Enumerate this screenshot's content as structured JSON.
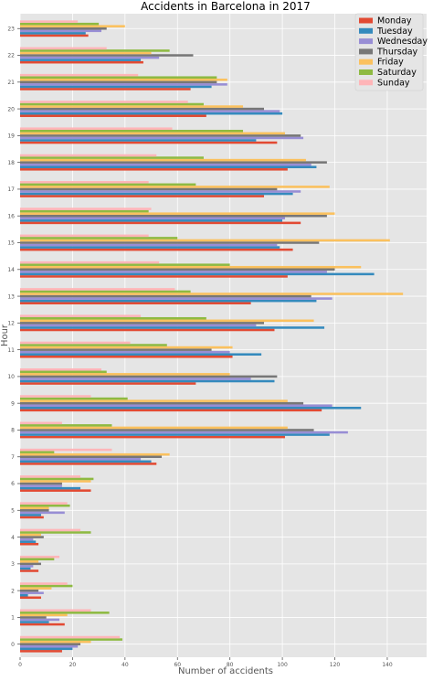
{
  "chart_data": {
    "type": "bar",
    "orientation": "horizontal",
    "title": "Accidents in Barcelona in 2017",
    "xlabel": "Number of accidents",
    "ylabel": "Hour",
    "xlim": [
      0,
      155
    ],
    "xticks": [
      0,
      20,
      40,
      60,
      80,
      100,
      120,
      140
    ],
    "grid": true,
    "legend_position": "top-right",
    "categories": [
      "0",
      "1",
      "2",
      "3",
      "4",
      "5",
      "6",
      "7",
      "8",
      "9",
      "10",
      "11",
      "12",
      "13",
      "14",
      "15",
      "16",
      "17",
      "18",
      "19",
      "20",
      "21",
      "22",
      "23"
    ],
    "series": [
      {
        "name": "Monday",
        "color": "#E24A33",
        "values": [
          16,
          17,
          8,
          7,
          7,
          9,
          27,
          52,
          101,
          115,
          67,
          81,
          97,
          88,
          102,
          104,
          107,
          93,
          102,
          98,
          71,
          65,
          47,
          26
        ]
      },
      {
        "name": "Tuesday",
        "color": "#348ABD",
        "values": [
          20,
          11,
          3,
          4,
          6,
          8,
          23,
          50,
          118,
          130,
          97,
          92,
          116,
          113,
          135,
          99,
          100,
          104,
          113,
          90,
          100,
          73,
          46,
          25
        ]
      },
      {
        "name": "Wednesday",
        "color": "#988ED5",
        "values": [
          22,
          15,
          9,
          5,
          5,
          17,
          16,
          46,
          125,
          119,
          88,
          80,
          90,
          119,
          117,
          98,
          101,
          107,
          111,
          108,
          99,
          79,
          53,
          31
        ]
      },
      {
        "name": "Thursday",
        "color": "#777777",
        "values": [
          23,
          10,
          7,
          8,
          9,
          11,
          16,
          54,
          112,
          108,
          98,
          73,
          93,
          111,
          120,
          114,
          117,
          98,
          117,
          107,
          93,
          75,
          66,
          33
        ]
      },
      {
        "name": "Friday",
        "color": "#FBC15E",
        "values": [
          27,
          18,
          12,
          7,
          8,
          11,
          27,
          57,
          102,
          102,
          80,
          81,
          112,
          146,
          130,
          141,
          120,
          118,
          109,
          101,
          85,
          79,
          50,
          40
        ]
      },
      {
        "name": "Saturday",
        "color": "#8EBA42",
        "values": [
          39,
          34,
          20,
          13,
          27,
          19,
          28,
          13,
          35,
          41,
          33,
          56,
          71,
          65,
          80,
          60,
          49,
          67,
          70,
          85,
          70,
          75,
          57,
          30
        ]
      },
      {
        "name": "Sunday",
        "color": "#FFB5B8",
        "values": [
          38,
          27,
          18,
          15,
          23,
          18,
          23,
          35,
          16,
          27,
          31,
          42,
          46,
          59,
          53,
          49,
          50,
          49,
          52,
          58,
          64,
          45,
          33,
          22
        ]
      }
    ]
  }
}
